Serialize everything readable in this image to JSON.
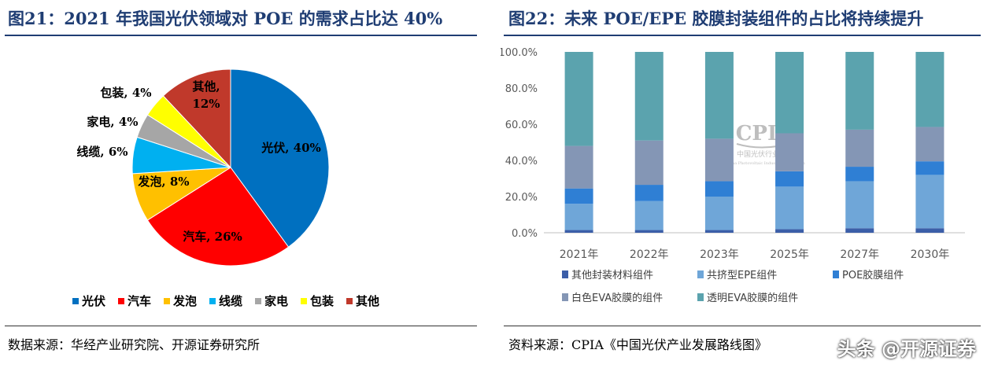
{
  "left_panel": {
    "title": "图21：2021 年我国光伏领域对 POE 的需求占比达 40%",
    "source": "数据来源：华经产业研究院、开源证券研究所"
  },
  "right_panel": {
    "title": "图22：未来 POE/EPE 胶膜封装组件的占比将持续提升",
    "source": "资料来源：CPIA《中国光伏产业发展路线图》",
    "cpia_logo_text": "CPIA",
    "cpia_logo_subtext": "中国光伏行业协会",
    "cpia_logo_en": "China Photovoltaic Industry Association"
  },
  "watermark": "头条 @开源证券",
  "chart_data": [
    {
      "type": "pie",
      "title": "2021 年我国光伏领域对 POE 的需求占比达 40%",
      "labels": [
        "光伏",
        "汽车",
        "发泡",
        "线缆",
        "家电",
        "包装",
        "其他"
      ],
      "values": [
        40,
        26,
        8,
        6,
        4,
        4,
        12
      ],
      "value_suffix": "%",
      "colors": [
        "#0070c0",
        "#ff0000",
        "#ffc000",
        "#00b0f0",
        "#a6a6a6",
        "#ffff00",
        "#c0392b"
      ],
      "legend_position": "bottom"
    },
    {
      "type": "bar",
      "stacked": true,
      "title": "未来 POE/EPE 胶膜封装组件的占比将持续提升",
      "categories": [
        "2021年",
        "2022年",
        "2023年",
        "2025年",
        "2027年",
        "2030年"
      ],
      "ylim": [
        0,
        100
      ],
      "yticks": [
        "0.0%",
        "20.0%",
        "40.0%",
        "60.0%",
        "80.0%",
        "100.0%"
      ],
      "series": [
        {
          "name": "其他封装材料组件",
          "color": "#3b5ea8",
          "values": [
            1.5,
            1.5,
            1.5,
            2.0,
            2.5,
            2.5
          ]
        },
        {
          "name": "共挤型EPE组件",
          "color": "#6fa6d8",
          "values": [
            14.5,
            16.0,
            18.5,
            23.5,
            26.0,
            29.5
          ]
        },
        {
          "name": "POE胶膜组件",
          "color": "#2f7fd4",
          "values": [
            8.5,
            9.0,
            8.5,
            8.5,
            8.0,
            7.5
          ]
        },
        {
          "name": "白色EVA胶膜的组件",
          "color": "#8496b5",
          "values": [
            23.5,
            24.5,
            23.5,
            21.0,
            20.5,
            19.0
          ]
        },
        {
          "name": "透明EVA胶膜的组件",
          "color": "#5ba3ae",
          "values": [
            52.0,
            49.0,
            48.0,
            45.0,
            43.0,
            41.5
          ]
        }
      ],
      "legend_position": "bottom",
      "grid": false
    }
  ]
}
